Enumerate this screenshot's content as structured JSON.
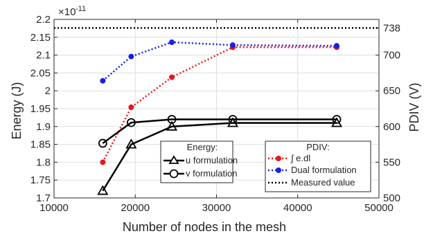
{
  "chart_data": {
    "type": "line",
    "xlabel": "Number of nodes in the mesh",
    "ylabel_left": "Energy (J)",
    "ylabel_right": "PDIV (V)",
    "exponent_label": "×10",
    "exponent_power": "-11",
    "xlim": [
      10000,
      50000
    ],
    "ylim_left": [
      1.7,
      2.2
    ],
    "ylim_right": [
      500,
      750
    ],
    "x_ticks": [
      10000,
      20000,
      30000,
      40000,
      50000
    ],
    "y_ticks_left": [
      1.7,
      1.75,
      1.8,
      1.85,
      1.9,
      1.95,
      2.0,
      2.05,
      2.1,
      2.15,
      2.2
    ],
    "y_ticks_left_labels": [
      "1.7",
      "1.75",
      "1.8",
      "1.85",
      "1.9",
      "1.95",
      "2",
      "2.05",
      "2.1",
      "2.15",
      "2.2"
    ],
    "y_ticks_right": [
      500,
      550,
      600,
      650,
      700,
      738
    ],
    "y_ticks_right_labels": [
      "500",
      "550",
      "600",
      "650",
      "700",
      "738"
    ],
    "grid": true,
    "energy_legend_title": "Energy:",
    "pdiv_legend_title": "PDIV:",
    "energy_series": [
      {
        "name": "u formulation",
        "marker": "triangle",
        "color": "#000000",
        "x": [
          16000,
          19500,
          24500,
          32000,
          44800
        ],
        "y": [
          1.72,
          1.85,
          1.9,
          1.91,
          1.91
        ]
      },
      {
        "name": "v formulation",
        "marker": "circle",
        "color": "#000000",
        "x": [
          16000,
          19500,
          24500,
          32000,
          44800
        ],
        "y": [
          1.853,
          1.911,
          1.92,
          1.92,
          1.92
        ]
      }
    ],
    "pdiv_series": [
      {
        "name": "∫ e.dl",
        "color": "#e8151b",
        "x": [
          16000,
          19500,
          24500,
          32000,
          44800
        ],
        "y": [
          550,
          627,
          669,
          711,
          711
        ]
      },
      {
        "name": "Dual formulation",
        "color": "#1520e8",
        "x": [
          16000,
          19500,
          24500,
          32000,
          44800
        ],
        "y": [
          664,
          698,
          718,
          714,
          713
        ]
      },
      {
        "name": "Measured value",
        "color": "#000000",
        "y": 738
      }
    ]
  }
}
